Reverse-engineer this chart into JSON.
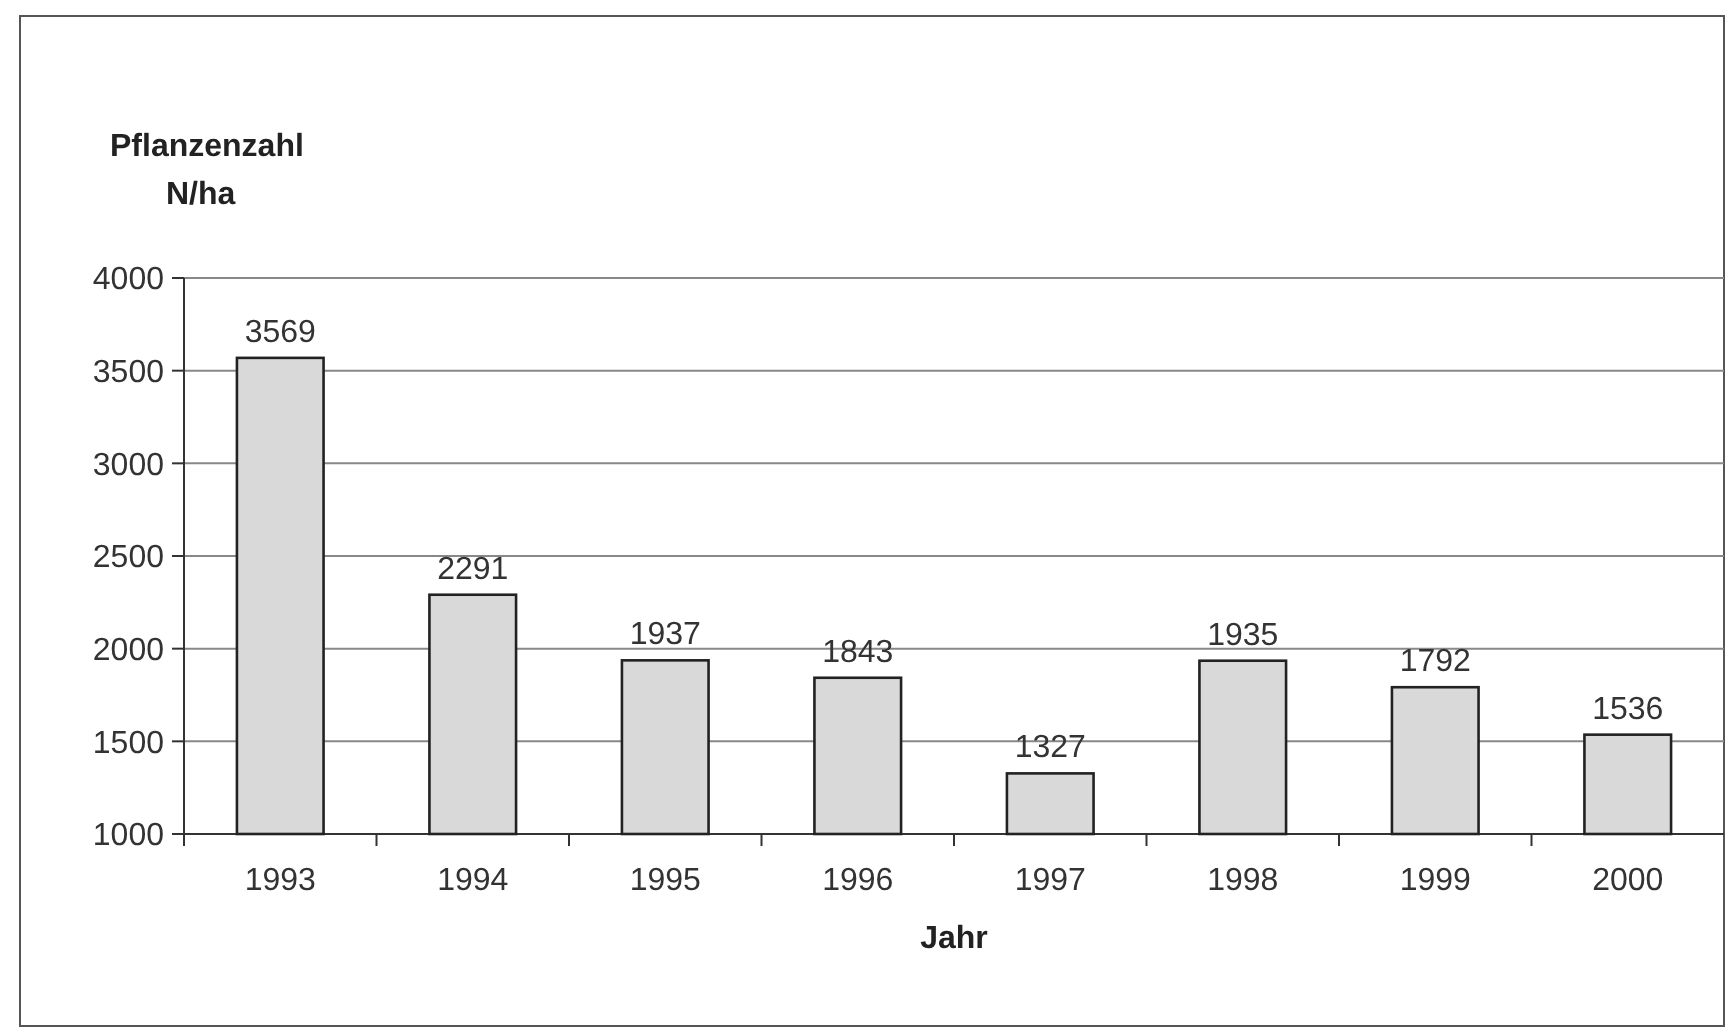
{
  "chart_data": {
    "type": "bar",
    "ylabel": "Pflanzenzahl\nN/ha",
    "xlabel": "Jahr",
    "categories": [
      "1993",
      "1994",
      "1995",
      "1996",
      "1997",
      "1998",
      "1999",
      "2000"
    ],
    "values": [
      3569,
      2291,
      1937,
      1843,
      1327,
      1935,
      1792,
      1536
    ],
    "color": "#d9d9d9",
    "ylim": [
      1000,
      4000
    ],
    "yticks": [
      1000,
      1500,
      2000,
      2500,
      3000,
      3500,
      4000
    ],
    "grid": "y",
    "data_labels": true
  }
}
